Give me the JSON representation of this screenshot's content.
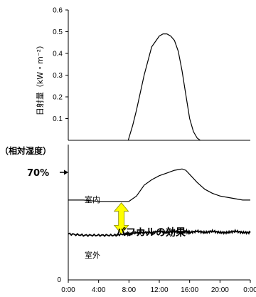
{
  "chart_data": [
    {
      "type": "line",
      "ylabel": "日射量（kW・m⁻²）",
      "ylim": [
        0,
        0.6
      ],
      "yticks": [
        "0.1",
        "0.2",
        "0.3",
        "0.4",
        "0.5",
        "0.6"
      ],
      "xlim": [
        0,
        24
      ],
      "x": [
        7.9,
        8.5,
        9.0,
        10.0,
        11.0,
        12.0,
        12.5,
        13.0,
        13.5,
        14.0,
        14.5,
        15.0,
        15.5,
        16.0,
        16.5,
        17.0,
        17.4
      ],
      "series": [
        {
          "color": "#000000",
          "values": [
            0.0,
            0.07,
            0.14,
            0.3,
            0.43,
            0.48,
            0.49,
            0.49,
            0.48,
            0.46,
            0.41,
            0.32,
            0.21,
            0.1,
            0.04,
            0.01,
            0.0
          ]
        }
      ]
    },
    {
      "type": "line",
      "ylabel": "（相対湿度）",
      "ref_label": "70%",
      "ylim": [
        0,
        100
      ],
      "xlim": [
        0,
        24
      ],
      "xticks": [
        "0:00",
        "4:00",
        "8:00",
        "12:00",
        "16:00",
        "20:00",
        "0:00"
      ],
      "x": [
        0,
        2,
        4,
        6,
        7.5,
        8,
        9,
        10,
        11,
        12,
        13,
        14,
        15,
        15.5,
        16,
        17,
        18,
        19,
        20,
        21,
        22,
        23,
        24
      ],
      "series": [
        {
          "name": "室内",
          "color": "#000000",
          "values": [
            59,
            59,
            58,
            58,
            58,
            58,
            62,
            70,
            74,
            77,
            79,
            81,
            82,
            81,
            78,
            72,
            67,
            64,
            62,
            61,
            60,
            59,
            59
          ]
        },
        {
          "name": "室外",
          "color": "#000000",
          "values": [
            34,
            33,
            33,
            33,
            34,
            34,
            35,
            35,
            35,
            36,
            35,
            36,
            35,
            36,
            35,
            36,
            35,
            36,
            35,
            35,
            36,
            35,
            35
          ]
        }
      ],
      "annotation": {
        "text": "パフカルの効果",
        "arrow_color": "#ffff00",
        "arrow_at_x": 7.0,
        "arrow_from": 34,
        "arrow_to": 57
      }
    }
  ]
}
